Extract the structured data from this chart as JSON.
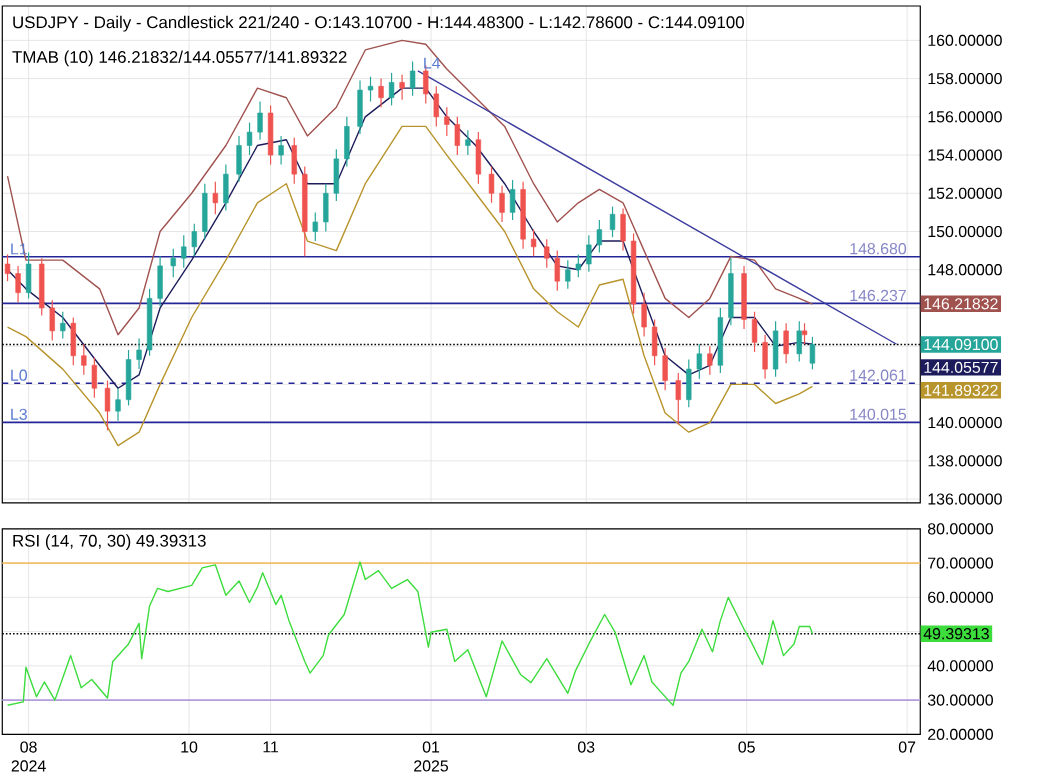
{
  "chart_data": [
    {
      "type": "candlestick",
      "title": "USDJPY - Daily - Candlestick    221/240 - O:143.10700 - H:144.48300 - L:142.78600 - C:144.09100",
      "subtitle": "TMAB (10)    146.21832/144.05577/141.89322",
      "x": [
        "2024-07-24",
        "2024-07-28",
        "2024-08-01",
        "2024-08-06",
        "2024-08-10",
        "2024-08-14",
        "2024-08-18",
        "2024-08-22",
        "2024-08-26",
        "2024-08-31",
        "2024-09-04",
        "2024-09-08",
        "2024-09-12",
        "2024-09-16",
        "2024-09-20",
        "2024-09-25",
        "2024-09-29",
        "2024-10-03",
        "2024-10-07",
        "2024-10-11",
        "2024-10-15",
        "2024-10-20",
        "2024-10-24",
        "2024-10-28",
        "2024-11-01",
        "2024-11-05",
        "2024-11-10",
        "2024-11-14",
        "2024-11-18",
        "2024-11-22",
        "2024-11-26",
        "2024-11-30",
        "2024-12-05",
        "2024-12-09",
        "2024-12-13",
        "2024-12-17",
        "2024-12-21",
        "2024-12-25",
        "2024-12-30",
        "2025-01-03",
        "2025-01-07",
        "2025-01-11",
        "2025-01-15",
        "2025-01-19",
        "2025-01-24",
        "2025-01-28",
        "2025-02-01",
        "2025-02-05",
        "2025-02-09",
        "2025-02-14",
        "2025-02-18",
        "2025-02-22",
        "2025-02-26",
        "2025-03-02",
        "2025-03-06",
        "2025-03-11",
        "2025-03-15",
        "2025-03-19",
        "2025-03-23",
        "2025-03-27",
        "2025-03-31",
        "2025-04-05",
        "2025-04-09",
        "2025-04-13",
        "2025-04-17",
        "2025-04-21",
        "2025-04-25",
        "2025-04-30",
        "2025-05-04",
        "2025-05-08",
        "2025-05-12",
        "2025-05-16",
        "2025-05-21",
        "2025-05-23",
        "2025-05-26"
      ],
      "ohlc": [
        [
          148.3,
          148.8,
          147.4,
          147.8
        ],
        [
          147.8,
          148.2,
          146.3,
          146.8
        ],
        [
          146.8,
          148.9,
          146.5,
          148.3
        ],
        [
          148.3,
          148.6,
          145.6,
          146.0
        ],
        [
          146.0,
          146.4,
          144.3,
          144.8
        ],
        [
          144.8,
          145.8,
          144.4,
          145.2
        ],
        [
          145.2,
          145.5,
          143.0,
          143.5
        ],
        [
          143.5,
          144.1,
          142.5,
          143.0
        ],
        [
          143.0,
          143.4,
          141.3,
          141.8
        ],
        [
          141.8,
          142.2,
          139.6,
          140.6
        ],
        [
          140.6,
          141.8,
          140.1,
          141.2
        ],
        [
          141.2,
          143.8,
          140.9,
          143.3
        ],
        [
          143.3,
          144.4,
          142.8,
          143.8
        ],
        [
          143.8,
          147.0,
          143.5,
          146.5
        ],
        [
          146.5,
          148.7,
          146.1,
          148.2
        ],
        [
          148.2,
          149.1,
          147.6,
          148.6
        ],
        [
          148.6,
          149.8,
          148.1,
          149.2
        ],
        [
          149.2,
          150.4,
          148.7,
          150.0
        ],
        [
          150.0,
          152.5,
          149.6,
          152.0
        ],
        [
          152.0,
          152.6,
          150.9,
          151.5
        ],
        [
          151.5,
          153.5,
          151.1,
          153.0
        ],
        [
          153.0,
          155.0,
          152.6,
          154.5
        ],
        [
          154.5,
          155.7,
          154.0,
          155.2
        ],
        [
          155.2,
          156.8,
          154.8,
          156.2
        ],
        [
          156.2,
          156.6,
          153.5,
          154.0
        ],
        [
          154.0,
          155.0,
          153.5,
          154.5
        ],
        [
          154.5,
          154.9,
          152.5,
          153.0
        ],
        [
          153.0,
          153.4,
          148.7,
          150.0
        ],
        [
          150.0,
          151.0,
          149.5,
          150.5
        ],
        [
          150.5,
          152.5,
          150.0,
          152.0
        ],
        [
          152.0,
          154.3,
          151.6,
          153.8
        ],
        [
          153.8,
          156.0,
          153.4,
          155.5
        ],
        [
          155.5,
          157.9,
          155.1,
          157.4
        ],
        [
          157.4,
          158.1,
          156.8,
          157.6
        ],
        [
          157.6,
          158.0,
          156.5,
          157.0
        ],
        [
          157.0,
          158.3,
          156.6,
          157.8
        ],
        [
          157.8,
          158.2,
          156.9,
          157.5
        ],
        [
          157.5,
          158.9,
          157.1,
          158.4
        ],
        [
          158.4,
          158.7,
          156.7,
          157.2
        ],
        [
          157.2,
          157.6,
          155.5,
          156.0
        ],
        [
          156.0,
          156.5,
          155.0,
          155.6
        ],
        [
          155.6,
          156.0,
          154.0,
          154.5
        ],
        [
          154.5,
          155.3,
          154.0,
          154.8
        ],
        [
          154.8,
          155.2,
          152.5,
          153.0
        ],
        [
          153.0,
          153.4,
          151.5,
          152.0
        ],
        [
          152.0,
          152.4,
          150.5,
          151.0
        ],
        [
          151.0,
          152.7,
          150.6,
          152.2
        ],
        [
          152.2,
          152.6,
          149.1,
          149.6
        ],
        [
          149.6,
          150.1,
          148.7,
          149.2
        ],
        [
          149.2,
          149.6,
          148.1,
          148.6
        ],
        [
          148.6,
          149.0,
          146.9,
          147.4
        ],
        [
          147.4,
          148.5,
          147.0,
          148.0
        ],
        [
          148.0,
          148.8,
          147.6,
          148.3
        ],
        [
          148.3,
          149.8,
          147.9,
          149.3
        ],
        [
          149.3,
          150.6,
          148.9,
          150.1
        ],
        [
          150.1,
          151.3,
          149.7,
          150.9
        ],
        [
          150.9,
          151.2,
          149.0,
          149.5
        ],
        [
          149.5,
          149.9,
          145.7,
          146.2
        ],
        [
          146.2,
          146.8,
          144.5,
          145.0
        ],
        [
          145.0,
          145.4,
          143.0,
          143.5
        ],
        [
          143.5,
          143.9,
          141.7,
          142.2
        ],
        [
          142.2,
          142.6,
          139.9,
          141.2
        ],
        [
          141.2,
          143.3,
          140.8,
          142.8
        ],
        [
          142.8,
          144.1,
          142.3,
          143.6
        ],
        [
          143.6,
          144.0,
          142.5,
          143.0
        ],
        [
          143.0,
          146.0,
          142.6,
          145.5
        ],
        [
          145.5,
          148.6,
          145.1,
          147.8
        ],
        [
          147.8,
          148.2,
          144.9,
          145.4
        ],
        [
          145.4,
          145.8,
          143.7,
          144.2
        ],
        [
          144.2,
          144.6,
          142.3,
          142.8
        ],
        [
          142.8,
          145.3,
          142.4,
          144.8
        ],
        [
          144.8,
          145.2,
          143.1,
          143.6
        ],
        [
          143.6,
          145.3,
          143.2,
          144.8
        ],
        [
          144.8,
          145.2,
          144.1,
          144.6
        ],
        [
          143.107,
          144.483,
          142.786,
          144.091
        ]
      ],
      "series": [
        {
          "type": "line",
          "color": "#a0524f",
          "x": [
            "2024-07-24",
            "2024-07-31",
            "2024-08-14",
            "2024-08-28",
            "2024-09-04",
            "2024-09-12",
            "2024-09-20",
            "2024-10-02",
            "2024-10-15",
            "2024-10-27",
            "2024-11-07",
            "2024-11-15",
            "2024-11-26",
            "2024-12-07",
            "2024-12-21",
            "2024-12-30",
            "2025-01-07",
            "2025-01-18",
            "2025-01-29",
            "2025-02-09",
            "2025-02-18",
            "2025-02-26",
            "2025-03-06",
            "2025-03-15",
            "2025-03-23",
            "2025-03-31",
            "2025-04-09",
            "2025-04-17",
            "2025-04-25",
            "2025-05-04",
            "2025-05-12",
            "2025-05-21",
            "2025-05-26"
          ],
          "values": [
            152.9,
            148.5,
            148.5,
            147.0,
            144.6,
            146.0,
            150.0,
            152.0,
            154.5,
            157.5,
            157.0,
            155.0,
            156.5,
            159.5,
            160.0,
            159.8,
            158.5,
            157.0,
            155.5,
            152.5,
            150.5,
            151.5,
            152.2,
            151.5,
            149.0,
            146.5,
            145.5,
            146.5,
            148.7,
            148.5,
            147.0,
            146.5,
            146.2
          ]
        },
        {
          "type": "line",
          "color": "#1c1c5c",
          "x": [
            "2024-07-24",
            "2024-07-31",
            "2024-08-14",
            "2024-08-28",
            "2024-09-04",
            "2024-09-12",
            "2024-09-20",
            "2024-10-02",
            "2024-10-15",
            "2024-10-27",
            "2024-11-07",
            "2024-11-15",
            "2024-11-26",
            "2024-12-07",
            "2024-12-21",
            "2024-12-30",
            "2025-01-07",
            "2025-01-18",
            "2025-01-29",
            "2025-02-09",
            "2025-02-18",
            "2025-02-26",
            "2025-03-06",
            "2025-03-15",
            "2025-03-23",
            "2025-03-31",
            "2025-04-09",
            "2025-04-17",
            "2025-04-25",
            "2025-05-04",
            "2025-05-12",
            "2025-05-21",
            "2025-05-26"
          ],
          "values": [
            148.0,
            147.0,
            145.5,
            143.0,
            141.8,
            142.5,
            146.0,
            148.5,
            151.5,
            154.5,
            154.8,
            152.5,
            152.5,
            156.0,
            157.5,
            157.5,
            156.0,
            154.5,
            152.5,
            150.0,
            148.2,
            148.0,
            149.5,
            149.5,
            146.5,
            143.5,
            142.5,
            143.0,
            145.5,
            145.5,
            144.0,
            144.2,
            144.1
          ]
        },
        {
          "type": "line",
          "color": "#b8942c",
          "x": [
            "2024-07-24",
            "2024-07-31",
            "2024-08-14",
            "2024-08-28",
            "2024-09-04",
            "2024-09-12",
            "2024-09-20",
            "2024-10-02",
            "2024-10-15",
            "2024-10-27",
            "2024-11-07",
            "2024-11-15",
            "2024-11-26",
            "2024-12-07",
            "2024-12-21",
            "2024-12-30",
            "2025-01-07",
            "2025-01-18",
            "2025-01-29",
            "2025-02-09",
            "2025-02-18",
            "2025-02-26",
            "2025-03-06",
            "2025-03-15",
            "2025-03-23",
            "2025-03-31",
            "2025-04-09",
            "2025-04-17",
            "2025-04-25",
            "2025-05-04",
            "2025-05-12",
            "2025-05-21",
            "2025-05-26"
          ],
          "values": [
            145.0,
            144.5,
            142.8,
            140.5,
            138.8,
            139.5,
            142.0,
            145.5,
            148.5,
            151.5,
            152.5,
            149.5,
            149.0,
            152.5,
            155.5,
            155.5,
            154.0,
            152.0,
            150.0,
            147.0,
            145.8,
            145.0,
            147.2,
            147.5,
            143.5,
            140.5,
            139.5,
            140.0,
            142.0,
            142.0,
            141.0,
            141.5,
            141.9
          ]
        },
        {
          "type": "line",
          "color": "#3b3b9e",
          "x": [
            "2024-12-27",
            "2025-06-27"
          ],
          "values": [
            158.4,
            144.1
          ]
        }
      ],
      "xlim": [
        "2024-07-22",
        "2025-07-06"
      ],
      "ylim": [
        135.8,
        161.8
      ],
      "xticks": [
        {
          "value": "2024-08-01",
          "label": null
        },
        {
          "value": "2024-10-01",
          "label": null
        },
        {
          "value": "2024-11-01",
          "label": null
        },
        {
          "value": "2025-01-01",
          "label": null
        },
        {
          "value": "2025-03-01",
          "label": null
        },
        {
          "value": "2025-05-01",
          "label": null
        },
        {
          "value": "2025-07-01",
          "label": null
        }
      ],
      "yticks": [
        {
          "value": 136,
          "label": "136.00000"
        },
        {
          "value": 138,
          "label": "138.00000"
        },
        {
          "value": 140,
          "label": "140.00000"
        },
        {
          "value": 142,
          "label": null
        },
        {
          "value": 144,
          "label": null
        },
        {
          "value": 146,
          "label": null
        },
        {
          "value": 148,
          "label": "148.00000"
        },
        {
          "value": 150,
          "label": "150.00000"
        },
        {
          "value": 152,
          "label": "152.00000"
        },
        {
          "value": 154,
          "label": "154.00000"
        },
        {
          "value": 156,
          "label": "156.00000"
        },
        {
          "value": 158,
          "label": "158.00000"
        },
        {
          "value": 160,
          "label": "160.00000"
        }
      ],
      "tick_labels": "y",
      "grid": true,
      "ref_lines": [
        {
          "axis": "y",
          "value": 148.68,
          "label": "148.680",
          "color": "#25259a"
        },
        {
          "axis": "y",
          "value": 146.237,
          "label": "146.237",
          "color": "#25259a"
        },
        {
          "axis": "y",
          "value": 144.091,
          "color": "#000000",
          "line_style": "dotted"
        },
        {
          "axis": "y",
          "value": 142.061,
          "label": "142.061",
          "color": "#25259a",
          "line_style": "dashed"
        },
        {
          "axis": "y",
          "value": 140.015,
          "label": "140.015",
          "color": "#25259a"
        }
      ],
      "annotations": [
        {
          "text": "L1",
          "x": "2024-07-24",
          "y": 148.68
        },
        {
          "text": "L0",
          "x": "2024-07-24",
          "y": 142.061
        },
        {
          "text": "L3",
          "x": "2024-07-24",
          "y": 140.015
        },
        {
          "text": "L4",
          "x": "2024-12-28",
          "y": 158.4
        },
        {
          "text": "146.21832",
          "x": "2025-07-06",
          "y": 146.21832
        },
        {
          "text": "144.09100",
          "x": "2025-07-06",
          "y": 144.091
        },
        {
          "text": "144.05577",
          "x": "2025-07-06",
          "y": 144.05577
        },
        {
          "text": "141.89322",
          "x": "2025-07-06",
          "y": 141.89322
        }
      ]
    },
    {
      "type": "line",
      "title": "RSI (14, 70, 30)    49.39313",
      "color": "#3ddc3d",
      "x": [
        "2024-07-24",
        "2024-07-30",
        "2024-07-31",
        "2024-08-04",
        "2024-08-07",
        "2024-08-11",
        "2024-08-17",
        "2024-08-21",
        "2024-08-25",
        "2024-08-31",
        "2024-09-02",
        "2024-09-08",
        "2024-09-12",
        "2024-09-13",
        "2024-09-16",
        "2024-09-19",
        "2024-09-23",
        "2024-10-02",
        "2024-10-06",
        "2024-10-11",
        "2024-10-15",
        "2024-10-20",
        "2024-10-24",
        "2024-10-27",
        "2024-10-29",
        "2024-11-03",
        "2024-11-05",
        "2024-11-08",
        "2024-11-14",
        "2024-11-16",
        "2024-11-21",
        "2024-11-23",
        "2024-11-29",
        "2024-12-03",
        "2024-12-05",
        "2024-12-07",
        "2024-12-12",
        "2024-12-17",
        "2024-12-23",
        "2024-12-27",
        "2024-12-31",
        "2025-01-01",
        "2025-01-07",
        "2025-01-10",
        "2025-01-15",
        "2025-01-22",
        "2025-01-28",
        "2025-02-04",
        "2025-02-08",
        "2025-02-14",
        "2025-02-22",
        "2025-02-25",
        "2025-03-02",
        "2025-03-08",
        "2025-03-12",
        "2025-03-18",
        "2025-03-23",
        "2025-03-26",
        "2025-03-29",
        "2025-04-03",
        "2025-04-06",
        "2025-04-09",
        "2025-04-14",
        "2025-04-18",
        "2025-04-21",
        "2025-04-24",
        "2025-04-30",
        "2025-05-02",
        "2025-05-07",
        "2025-05-11",
        "2025-05-15",
        "2025-05-19",
        "2025-05-21",
        "2025-05-25",
        "2025-05-26"
      ],
      "values": [
        28.5,
        29.5,
        39.6,
        31,
        35.3,
        30,
        43,
        33.6,
        36,
        30.6,
        41.3,
        46.4,
        52.4,
        42.1,
        57.5,
        62.6,
        61.7,
        63.5,
        68.6,
        69.5,
        60.6,
        64.8,
        58.5,
        63.0,
        67.2,
        57.9,
        60.6,
        53.2,
        41.3,
        37.9,
        43,
        49,
        55,
        65.2,
        70.3,
        65.2,
        67.8,
        62.6,
        65.2,
        61.7,
        45.5,
        49.8,
        50.7,
        41.3,
        44.7,
        31,
        47.3,
        37.5,
        35.1,
        42.1,
        32,
        38.7,
        46.4,
        55,
        49.8,
        34.5,
        43,
        35.3,
        32.7,
        28.5,
        37.9,
        41.3,
        50.7,
        44.1,
        53.2,
        60,
        50.7,
        48.1,
        40.4,
        53.2,
        43,
        46.4,
        51.5,
        51.5,
        49.4
      ],
      "xlim": [
        "2024-07-22",
        "2025-07-06"
      ],
      "ylim": [
        20,
        80
      ],
      "xticks": [
        {
          "value": "2024-08-01",
          "label": "08 2024"
        },
        {
          "value": "2024-10-01",
          "label": "10"
        },
        {
          "value": "2024-11-01",
          "label": "11"
        },
        {
          "value": "2025-01-01",
          "label": "01 2025"
        },
        {
          "value": "2025-03-01",
          "label": "03"
        },
        {
          "value": "2025-05-01",
          "label": "05"
        },
        {
          "value": "2025-07-01",
          "label": "07"
        }
      ],
      "yticks": [
        {
          "value": 20,
          "label": "20.00000"
        },
        {
          "value": 30,
          "label": "30.00000"
        },
        {
          "value": 40,
          "label": "40.00000"
        },
        {
          "value": 50,
          "label": null
        },
        {
          "value": 60,
          "label": "60.00000"
        },
        {
          "value": 70,
          "label": "70.00000"
        },
        {
          "value": 80,
          "label": "80.00000"
        }
      ],
      "grid": true,
      "ref_lines": [
        {
          "axis": "y",
          "value": 70,
          "color": "#f5c06b"
        },
        {
          "axis": "y",
          "value": 30,
          "color": "#b39ddb"
        },
        {
          "axis": "y",
          "value": 49.39313,
          "color": "#000000",
          "line_style": "dotted"
        }
      ],
      "annotations": [
        {
          "text": "49.39313",
          "x": "2025-07-06",
          "y": 49.39313
        }
      ]
    }
  ]
}
